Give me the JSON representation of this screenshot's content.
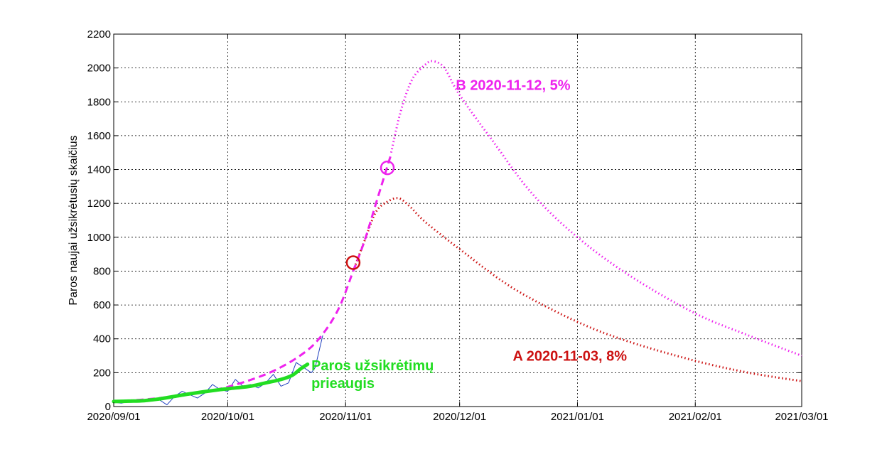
{
  "chart_data": {
    "type": "line",
    "title": "",
    "xlabel": "",
    "ylabel": "Paros naujai užsikrėtusių skaičius",
    "x_ticks": [
      "2020/09/01",
      "2020/10/01",
      "2020/11/01",
      "2020/12/01",
      "2021/01/01",
      "2021/02/01",
      "2021/03/01"
    ],
    "xlim": [
      "2020-09-01",
      "2021-03-01"
    ],
    "y_ticks": [
      0,
      200,
      400,
      600,
      800,
      1000,
      1200,
      1400,
      1600,
      1800,
      2000,
      2200
    ],
    "ylim": [
      0,
      2200
    ],
    "grid": true,
    "colors": {
      "observed": "#1f3fbf",
      "smoothed": "#22dd22",
      "model": "#ee22ee",
      "scenario_a": "#cc1111",
      "scenario_b": "#ee22ee"
    },
    "series": [
      {
        "key": "observed",
        "style": "thin-solid",
        "points": [
          [
            "2020-09-01",
            25
          ],
          [
            "2020-09-03",
            20
          ],
          [
            "2020-09-05",
            30
          ],
          [
            "2020-09-07",
            35
          ],
          [
            "2020-09-09",
            28
          ],
          [
            "2020-09-11",
            45
          ],
          [
            "2020-09-13",
            40
          ],
          [
            "2020-09-15",
            10
          ],
          [
            "2020-09-17",
            60
          ],
          [
            "2020-09-19",
            90
          ],
          [
            "2020-09-21",
            70
          ],
          [
            "2020-09-23",
            50
          ],
          [
            "2020-09-25",
            80
          ],
          [
            "2020-09-27",
            130
          ],
          [
            "2020-09-29",
            100
          ],
          [
            "2020-10-01",
            90
          ],
          [
            "2020-10-03",
            160
          ],
          [
            "2020-10-05",
            120
          ],
          [
            "2020-10-07",
            130
          ],
          [
            "2020-10-09",
            110
          ],
          [
            "2020-10-11",
            140
          ],
          [
            "2020-10-13",
            190
          ],
          [
            "2020-10-15",
            120
          ],
          [
            "2020-10-17",
            140
          ],
          [
            "2020-10-19",
            260
          ],
          [
            "2020-10-21",
            230
          ],
          [
            "2020-10-23",
            200
          ],
          [
            "2020-10-24",
            230
          ],
          [
            "2020-10-26",
            420
          ]
        ]
      },
      {
        "key": "smoothed",
        "name": "Paros užsikrėtimų prieaugis",
        "style": "thick-solid",
        "points": [
          [
            "2020-09-01",
            30
          ],
          [
            "2020-09-05",
            32
          ],
          [
            "2020-09-09",
            35
          ],
          [
            "2020-09-13",
            45
          ],
          [
            "2020-09-17",
            60
          ],
          [
            "2020-09-21",
            75
          ],
          [
            "2020-09-25",
            88
          ],
          [
            "2020-09-29",
            100
          ],
          [
            "2020-10-03",
            110
          ],
          [
            "2020-10-07",
            120
          ],
          [
            "2020-10-11",
            140
          ],
          [
            "2020-10-15",
            160
          ],
          [
            "2020-10-18",
            185
          ],
          [
            "2020-10-20",
            220
          ],
          [
            "2020-10-22",
            250
          ]
        ]
      },
      {
        "key": "model",
        "style": "dashed",
        "points": [
          [
            "2020-09-01",
            30
          ],
          [
            "2020-09-08",
            40
          ],
          [
            "2020-09-15",
            55
          ],
          [
            "2020-09-22",
            75
          ],
          [
            "2020-09-29",
            105
          ],
          [
            "2020-10-06",
            150
          ],
          [
            "2020-10-13",
            210
          ],
          [
            "2020-10-20",
            300
          ],
          [
            "2020-10-25",
            400
          ],
          [
            "2020-10-30",
            570
          ],
          [
            "2020-11-03",
            800
          ],
          [
            "2020-11-06",
            980
          ],
          [
            "2020-11-09",
            1200
          ],
          [
            "2020-11-12",
            1420
          ],
          [
            "2020-11-13",
            1490
          ]
        ]
      },
      {
        "key": "scenario_a",
        "name": "A 2020-11-03, 8%",
        "style": "dotted",
        "points": [
          [
            "2020-11-03",
            800
          ],
          [
            "2020-11-06",
            980
          ],
          [
            "2020-11-09",
            1150
          ],
          [
            "2020-11-12",
            1210
          ],
          [
            "2020-11-15",
            1230
          ],
          [
            "2020-11-18",
            1180
          ],
          [
            "2020-11-22",
            1090
          ],
          [
            "2020-12-01",
            930
          ],
          [
            "2020-12-15",
            700
          ],
          [
            "2021-01-01",
            500
          ],
          [
            "2021-01-15",
            380
          ],
          [
            "2021-02-01",
            270
          ],
          [
            "2021-02-15",
            200
          ],
          [
            "2021-03-01",
            150
          ]
        ]
      },
      {
        "key": "scenario_b",
        "name": "B 2020-11-12, 5%",
        "style": "dotted",
        "points": [
          [
            "2020-11-13",
            1500
          ],
          [
            "2020-11-15",
            1700
          ],
          [
            "2020-11-17",
            1850
          ],
          [
            "2020-11-19",
            1950
          ],
          [
            "2020-11-22",
            2020
          ],
          [
            "2020-11-24",
            2040
          ],
          [
            "2020-11-27",
            2000
          ],
          [
            "2020-12-01",
            1840
          ],
          [
            "2020-12-10",
            1560
          ],
          [
            "2020-12-20",
            1260
          ],
          [
            "2021-01-01",
            1000
          ],
          [
            "2021-01-15",
            770
          ],
          [
            "2021-02-01",
            550
          ],
          [
            "2021-02-15",
            420
          ],
          [
            "2021-03-01",
            300
          ]
        ]
      }
    ],
    "markers": [
      {
        "x": "2020-11-03",
        "y": 850,
        "color": "#cc1111"
      },
      {
        "x": "2020-11-12",
        "y": 1410,
        "color": "#ee22ee"
      }
    ],
    "annotations": [
      {
        "key": "label_b",
        "lines": [
          "B 2020-11-12, 5%"
        ],
        "x": "2020-11-30",
        "y": 1870,
        "color": "#ee22ee"
      },
      {
        "key": "label_a",
        "lines": [
          "A 2020-11-03, 8%"
        ],
        "x": "2020-12-15",
        "y": 270,
        "color": "#cc1111"
      },
      {
        "key": "label_green",
        "lines": [
          "Paros užsikrėtimų",
          "prieaugis"
        ],
        "x": "2020-10-23",
        "y": 215,
        "color": "#22dd22"
      }
    ]
  }
}
